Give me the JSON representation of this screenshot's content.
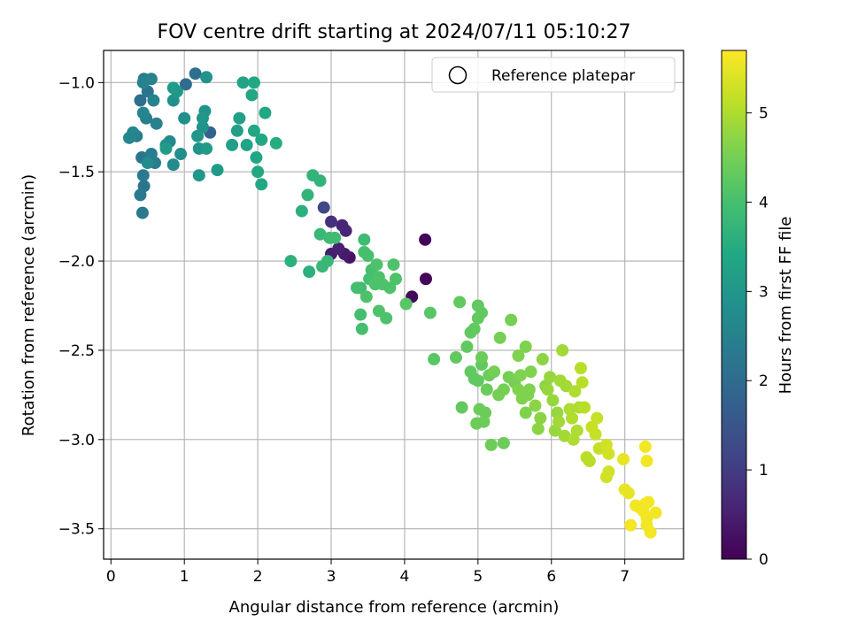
{
  "chart_data": {
    "type": "scatter",
    "title": "FOV centre drift starting at 2024/07/11 05:10:27",
    "xlabel": "Angular distance from reference (arcmin)",
    "ylabel": "Rotation from reference (arcmin)",
    "xlim": [
      -0.1,
      7.8
    ],
    "ylim": [
      -3.67,
      -0.82
    ],
    "xticks": [
      0,
      1,
      2,
      3,
      4,
      5,
      6,
      7
    ],
    "yticks": [
      -1.0,
      -1.5,
      -2.0,
      -2.5,
      -3.0,
      -3.5
    ],
    "xtick_labels": [
      "0",
      "1",
      "2",
      "3",
      "4",
      "5",
      "6",
      "7"
    ],
    "ytick_labels": [
      "−1.0",
      "−1.5",
      "−2.0",
      "−2.5",
      "−3.0",
      "−3.5"
    ],
    "grid": true,
    "legend": {
      "position": "top-right",
      "entries": [
        {
          "label": "Reference platepar",
          "marker": "open-circle"
        }
      ]
    },
    "colorbar": {
      "label": "Hours from first FF file",
      "colormap": "viridis",
      "range": [
        0,
        5.7
      ],
      "ticks": [
        0,
        1,
        2,
        3,
        4,
        5
      ],
      "tick_labels": [
        "0",
        "1",
        "2",
        "3",
        "4",
        "5"
      ]
    },
    "points": [
      [
        4.28,
        -1.88,
        0.05
      ],
      [
        4.29,
        -2.1,
        0.1
      ],
      [
        4.1,
        -2.2,
        0.1
      ],
      [
        3.25,
        -1.98,
        0.3
      ],
      [
        3.18,
        -1.96,
        0.4
      ],
      [
        3.0,
        -1.96,
        0.45
      ],
      [
        3.1,
        -1.93,
        0.5
      ],
      [
        3.15,
        -1.8,
        0.6
      ],
      [
        3.2,
        -1.83,
        0.6
      ],
      [
        3.0,
        -1.78,
        0.8
      ],
      [
        2.9,
        -1.7,
        1.2
      ],
      [
        1.35,
        -1.28,
        1.8
      ],
      [
        1.02,
        -1.01,
        2.0
      ],
      [
        1.15,
        -0.95,
        2.1
      ],
      [
        0.4,
        -1.1,
        2.1
      ],
      [
        0.5,
        -1.05,
        2.2
      ],
      [
        0.42,
        -1.42,
        2.2
      ],
      [
        0.45,
        -1.58,
        2.2
      ],
      [
        0.43,
        -1.73,
        2.3
      ],
      [
        0.4,
        -1.63,
        2.3
      ],
      [
        0.44,
        -1.52,
        2.3
      ],
      [
        0.45,
        -0.98,
        2.3
      ],
      [
        0.35,
        -1.3,
        2.4
      ],
      [
        0.55,
        -1.4,
        2.4
      ],
      [
        0.6,
        -1.45,
        2.4
      ],
      [
        0.48,
        -1.2,
        2.4
      ],
      [
        0.55,
        -0.98,
        2.5
      ],
      [
        0.62,
        -1.23,
        2.5
      ],
      [
        0.58,
        -1.1,
        2.5
      ],
      [
        0.44,
        -1.0,
        2.5
      ],
      [
        0.25,
        -1.31,
        2.6
      ],
      [
        0.3,
        -1.28,
        2.6
      ],
      [
        0.44,
        -1.17,
        2.6
      ],
      [
        0.5,
        -1.45,
        2.7
      ],
      [
        0.8,
        -1.33,
        2.7
      ],
      [
        0.85,
        -1.46,
        2.7
      ],
      [
        0.75,
        -1.35,
        2.8
      ],
      [
        0.95,
        -1.4,
        2.8
      ],
      [
        0.85,
        -1.1,
        2.8
      ],
      [
        1.0,
        -1.2,
        2.8
      ],
      [
        1.2,
        -1.37,
        2.9
      ],
      [
        1.25,
        -1.25,
        2.9
      ],
      [
        1.28,
        -1.16,
        2.9
      ],
      [
        1.3,
        -0.97,
        2.9
      ],
      [
        1.18,
        -1.3,
        3.0
      ],
      [
        1.2,
        -1.52,
        3.0
      ],
      [
        1.25,
        -1.2,
        3.0
      ],
      [
        0.9,
        -1.05,
        3.0
      ],
      [
        1.45,
        -1.49,
        3.1
      ],
      [
        1.3,
        -1.37,
        3.1
      ],
      [
        0.75,
        -1.37,
        3.1
      ],
      [
        0.85,
        -1.03,
        3.1
      ],
      [
        1.65,
        -1.35,
        3.2
      ],
      [
        1.72,
        -1.27,
        3.2
      ],
      [
        1.75,
        -1.2,
        3.2
      ],
      [
        1.85,
        -1.35,
        3.3
      ],
      [
        1.8,
        -1.0,
        3.3
      ],
      [
        1.95,
        -1.0,
        3.4
      ],
      [
        1.92,
        -1.07,
        3.4
      ],
      [
        1.98,
        -1.42,
        3.4
      ],
      [
        2.0,
        -1.5,
        3.4
      ],
      [
        2.05,
        -1.57,
        3.4
      ],
      [
        2.1,
        -1.17,
        3.4
      ],
      [
        1.95,
        -1.27,
        3.4
      ],
      [
        2.05,
        -1.32,
        3.4
      ],
      [
        2.25,
        -1.34,
        3.5
      ],
      [
        2.45,
        -2.0,
        3.6
      ],
      [
        2.6,
        -1.72,
        3.6
      ],
      [
        2.7,
        -2.06,
        3.6
      ],
      [
        2.68,
        -1.63,
        3.7
      ],
      [
        2.75,
        -1.52,
        3.7
      ],
      [
        2.85,
        -1.55,
        3.7
      ],
      [
        2.85,
        -1.85,
        3.8
      ],
      [
        2.95,
        -2.0,
        3.8
      ],
      [
        2.88,
        -2.03,
        3.8
      ],
      [
        2.98,
        -1.87,
        3.9
      ],
      [
        3.05,
        -1.87,
        3.9
      ],
      [
        3.4,
        -2.15,
        3.9
      ],
      [
        3.45,
        -1.88,
        3.9
      ],
      [
        3.35,
        -2.15,
        4.0
      ],
      [
        3.4,
        -2.3,
        4.0
      ],
      [
        3.42,
        -2.38,
        4.0
      ],
      [
        3.5,
        -1.97,
        4.0
      ],
      [
        3.55,
        -2.05,
        4.0
      ],
      [
        3.45,
        -1.95,
        4.0
      ],
      [
        3.52,
        -2.1,
        4.0
      ],
      [
        3.6,
        -2.13,
        4.1
      ],
      [
        3.62,
        -2.02,
        4.1
      ],
      [
        3.65,
        -2.09,
        4.1
      ],
      [
        3.7,
        -2.13,
        4.1
      ],
      [
        3.75,
        -2.32,
        4.1
      ],
      [
        3.8,
        -2.15,
        4.1
      ],
      [
        3.65,
        -2.28,
        4.1
      ],
      [
        3.85,
        -2.02,
        4.1
      ],
      [
        3.88,
        -2.1,
        4.1
      ],
      [
        3.48,
        -2.2,
        4.1
      ],
      [
        4.02,
        -2.24,
        4.2
      ],
      [
        4.35,
        -2.29,
        4.2
      ],
      [
        4.4,
        -2.55,
        4.2
      ],
      [
        4.75,
        -2.23,
        4.3
      ],
      [
        4.7,
        -2.54,
        4.3
      ],
      [
        4.78,
        -2.82,
        4.3
      ],
      [
        4.9,
        -2.4,
        4.3
      ],
      [
        4.85,
        -2.48,
        4.3
      ],
      [
        4.9,
        -2.62,
        4.3
      ],
      [
        4.95,
        -2.38,
        4.3
      ],
      [
        5.0,
        -2.32,
        4.3
      ],
      [
        5.0,
        -2.25,
        4.3
      ],
      [
        5.05,
        -2.29,
        4.3
      ],
      [
        5.0,
        -2.67,
        4.3
      ],
      [
        5.05,
        -2.58,
        4.3
      ],
      [
        4.95,
        -2.66,
        4.3
      ],
      [
        5.02,
        -2.83,
        4.4
      ],
      [
        4.98,
        -2.91,
        4.4
      ],
      [
        5.08,
        -2.9,
        4.4
      ],
      [
        5.1,
        -2.85,
        4.4
      ],
      [
        5.12,
        -2.72,
        4.4
      ],
      [
        5.05,
        -2.54,
        4.4
      ],
      [
        5.15,
        -2.64,
        4.4
      ],
      [
        5.18,
        -3.03,
        4.4
      ],
      [
        5.35,
        -3.02,
        4.4
      ],
      [
        5.28,
        -2.75,
        4.5
      ],
      [
        5.22,
        -2.62,
        4.5
      ],
      [
        5.3,
        -2.43,
        4.5
      ],
      [
        5.45,
        -2.33,
        4.5
      ],
      [
        5.35,
        -2.72,
        4.5
      ],
      [
        5.42,
        -2.65,
        4.5
      ],
      [
        5.5,
        -2.68,
        4.5
      ],
      [
        5.55,
        -2.53,
        4.6
      ],
      [
        5.55,
        -2.72,
        4.6
      ],
      [
        5.58,
        -2.64,
        4.6
      ],
      [
        5.6,
        -2.77,
        4.6
      ],
      [
        5.65,
        -2.85,
        4.6
      ],
      [
        5.68,
        -2.75,
        4.6
      ],
      [
        5.7,
        -2.72,
        4.6
      ],
      [
        5.65,
        -2.48,
        4.6
      ],
      [
        5.72,
        -2.62,
        4.6
      ],
      [
        5.78,
        -2.81,
        4.7
      ],
      [
        5.82,
        -2.94,
        4.7
      ],
      [
        5.85,
        -2.88,
        4.7
      ],
      [
        5.88,
        -2.55,
        4.7
      ],
      [
        5.92,
        -2.7,
        4.7
      ],
      [
        5.95,
        -2.72,
        4.8
      ],
      [
        5.98,
        -2.65,
        4.8
      ],
      [
        6.02,
        -2.78,
        4.8
      ],
      [
        6.05,
        -2.95,
        4.8
      ],
      [
        6.08,
        -2.85,
        4.8
      ],
      [
        6.1,
        -2.9,
        4.9
      ],
      [
        6.12,
        -2.67,
        4.9
      ],
      [
        6.15,
        -2.5,
        4.9
      ],
      [
        6.18,
        -2.98,
        4.9
      ],
      [
        6.2,
        -2.7,
        4.9
      ],
      [
        6.25,
        -2.83,
        5.0
      ],
      [
        6.28,
        -2.88,
        5.0
      ],
      [
        6.3,
        -3.0,
        5.0
      ],
      [
        6.32,
        -2.73,
        5.0
      ],
      [
        6.35,
        -2.95,
        5.0
      ],
      [
        6.38,
        -2.82,
        5.0
      ],
      [
        6.4,
        -2.6,
        5.1
      ],
      [
        6.42,
        -2.68,
        5.1
      ],
      [
        6.45,
        -2.82,
        5.1
      ],
      [
        6.48,
        -3.1,
        5.1
      ],
      [
        6.52,
        -3.12,
        5.1
      ],
      [
        6.55,
        -2.93,
        5.2
      ],
      [
        6.6,
        -2.97,
        5.2
      ],
      [
        6.62,
        -2.88,
        5.2
      ],
      [
        6.65,
        -3.05,
        5.2
      ],
      [
        6.75,
        -3.03,
        5.3
      ],
      [
        6.78,
        -3.08,
        5.3
      ],
      [
        6.78,
        -3.18,
        5.3
      ],
      [
        6.75,
        -3.21,
        5.3
      ],
      [
        6.98,
        -3.11,
        5.5
      ],
      [
        7.0,
        -3.28,
        5.5
      ],
      [
        7.05,
        -3.3,
        5.5
      ],
      [
        7.08,
        -3.48,
        5.6
      ],
      [
        7.15,
        -3.37,
        5.6
      ],
      [
        7.2,
        -3.38,
        5.6
      ],
      [
        7.25,
        -3.4,
        5.6
      ],
      [
        7.28,
        -3.36,
        5.6
      ],
      [
        7.3,
        -3.44,
        5.6
      ],
      [
        7.32,
        -3.35,
        5.6
      ],
      [
        7.3,
        -3.12,
        5.6
      ],
      [
        7.28,
        -3.04,
        5.6
      ],
      [
        7.35,
        -3.52,
        5.6
      ],
      [
        7.42,
        -3.41,
        5.6
      ],
      [
        7.3,
        -3.48,
        5.6
      ]
    ]
  }
}
